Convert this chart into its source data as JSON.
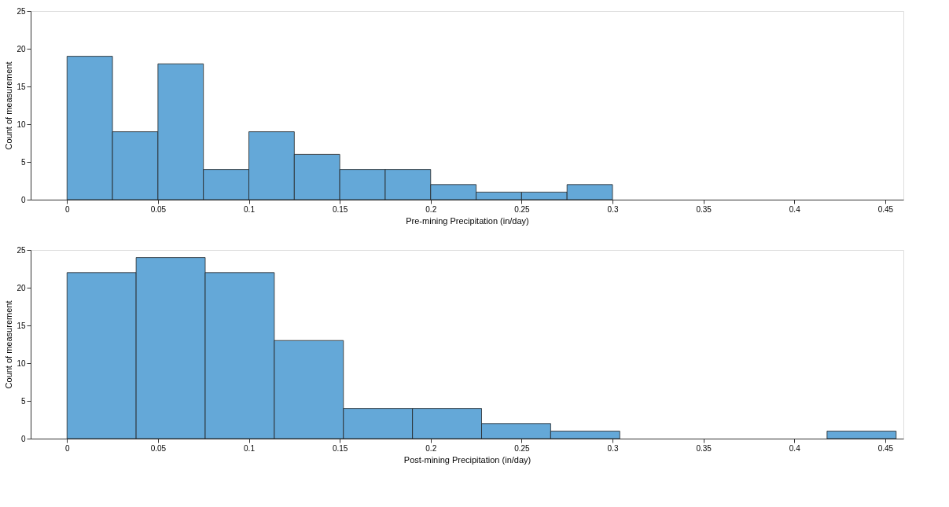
{
  "chart_data": [
    {
      "type": "histogram",
      "xlabel": "Pre-mining Precipitation (in/day)",
      "ylabel": "Count of measurement",
      "color": "#64a8d8",
      "bins": [
        0,
        0.025,
        0.05,
        0.075,
        0.1,
        0.125,
        0.15,
        0.175,
        0.2,
        0.225,
        0.25,
        0.275,
        0.3
      ],
      "values": [
        19,
        9,
        18,
        4,
        9,
        6,
        4,
        4,
        2,
        1,
        1,
        2
      ],
      "xlim": [
        -0.02,
        0.46
      ],
      "ylim": [
        0,
        25
      ],
      "xticks": [
        0,
        0.05,
        0.1,
        0.15,
        0.2,
        0.25,
        0.3,
        0.35,
        0.4,
        0.45
      ],
      "yticks": [
        0,
        5,
        10,
        15,
        20,
        25
      ],
      "grid": false
    },
    {
      "type": "histogram",
      "xlabel": "Post-mining Precipitation (in/day)",
      "ylabel": "Count of measurement",
      "color": "#64a8d8",
      "bins": [
        0,
        0.038,
        0.076,
        0.114,
        0.152,
        0.19,
        0.228,
        0.266,
        0.304,
        0.342,
        0.38,
        0.418,
        0.456
      ],
      "values": [
        22,
        24,
        22,
        13,
        4,
        4,
        2,
        1,
        0,
        0,
        0,
        1
      ],
      "xlim": [
        -0.02,
        0.46
      ],
      "ylim": [
        0,
        25
      ],
      "xticks": [
        0,
        0.05,
        0.1,
        0.15,
        0.2,
        0.25,
        0.3,
        0.35,
        0.4,
        0.45
      ],
      "yticks": [
        0,
        5,
        10,
        15,
        20,
        25
      ],
      "grid": false
    }
  ]
}
